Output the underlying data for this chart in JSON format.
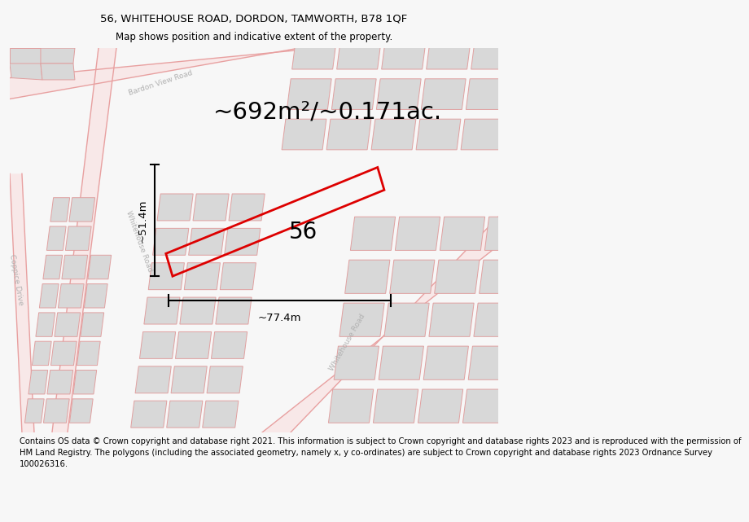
{
  "title_line1": "56, WHITEHOUSE ROAD, DORDON, TAMWORTH, B78 1QF",
  "title_line2": "Map shows position and indicative extent of the property.",
  "area_text": "~692m²/~0.171ac.",
  "dim_width": "~77.4m",
  "dim_height": "~51.4m",
  "label_number": "56",
  "footer_lines": [
    "Contains OS data © Crown copyright and database right 2021. This information is subject to Crown copyright and database rights 2023 and is reproduced with the permission of",
    "HM Land Registry. The polygons (including the associated geometry, namely x, y co-ordinates) are subject to Crown copyright and database rights 2023 Ordnance Survey",
    "100026316."
  ],
  "bg_color": "#f7f7f7",
  "map_bg": "#ffffff",
  "road_color": "#e8a0a0",
  "building_fill": "#d8d8d8",
  "building_edge": "#e0a0a0",
  "red_plot_color": "#dd0000",
  "title_fontsize": 9.5,
  "subtitle_fontsize": 8.5,
  "area_fontsize": 21,
  "dim_fontsize": 9.5,
  "num_fontsize": 20,
  "footer_fontsize": 7.2,
  "street_label_fontsize": 6.5,
  "street_label_color": "#b0b0b0"
}
